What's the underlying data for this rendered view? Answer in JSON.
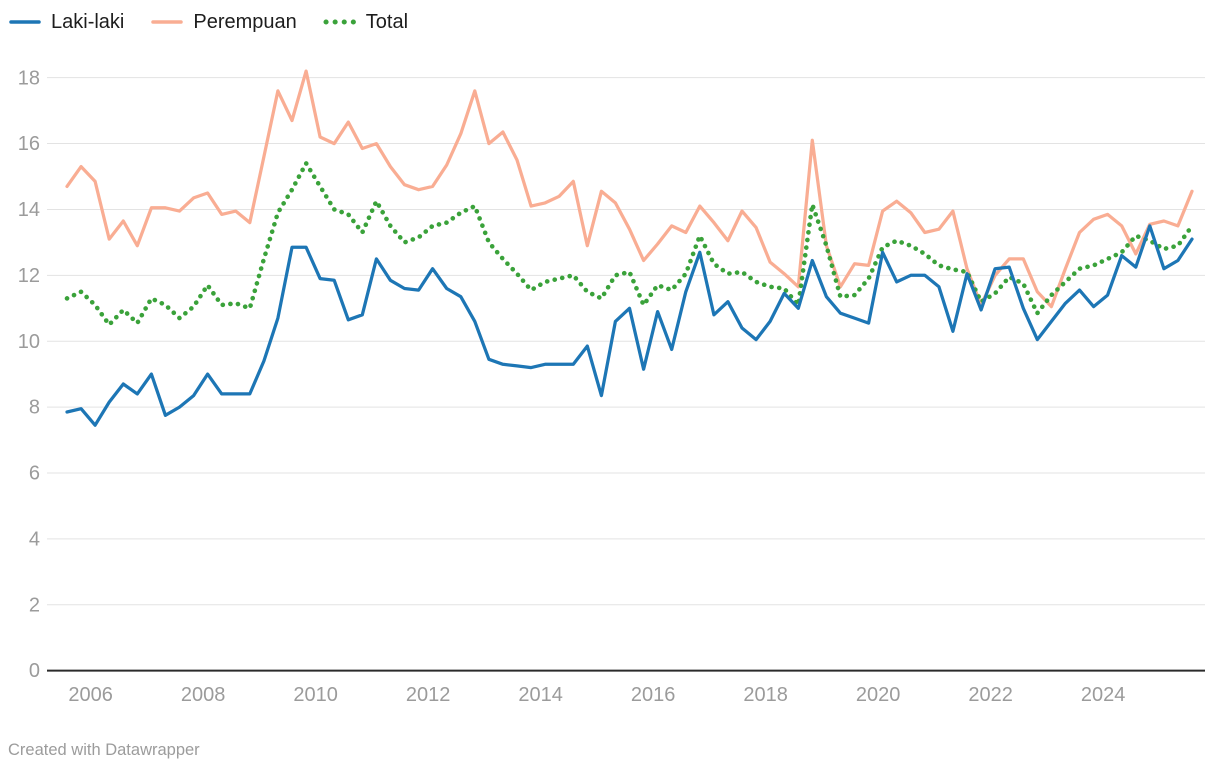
{
  "legend": {
    "items": [
      {
        "label": "Laki-laki",
        "color": "#1d76b5",
        "dash": "solid"
      },
      {
        "label": "Perempuan",
        "color": "#f9ad93",
        "dash": "solid"
      },
      {
        "label": "Total",
        "color": "#3aa23a",
        "dash": "dotted"
      }
    ]
  },
  "footer": {
    "credit": "Created with Datawrapper"
  },
  "colors": {
    "background": "#ffffff",
    "gridline": "#e3e3e3",
    "axis_baseline": "#2b2b2b",
    "tick_text": "#9b9b9b",
    "legend_text": "#1d1d1d"
  },
  "chart_data": {
    "type": "line",
    "title": "",
    "xlabel": "",
    "ylabel": "",
    "x_ticks": [
      2006,
      2008,
      2010,
      2012,
      2014,
      2016,
      2018,
      2020,
      2022,
      2024
    ],
    "y_ticks": [
      0,
      2,
      4,
      6,
      8,
      10,
      12,
      14,
      16,
      18
    ],
    "ylim": [
      0,
      18
    ],
    "grid": "horizontal",
    "legend_position": "top-left",
    "x_start": 2005.58,
    "x_step": 0.25,
    "points_per_series": 81,
    "series": [
      {
        "name": "Laki-laki",
        "color": "#1d76b5",
        "dash": "solid",
        "values": [
          7.85,
          7.95,
          7.45,
          8.15,
          8.7,
          8.4,
          9.0,
          7.75,
          8.0,
          8.35,
          9.0,
          8.4,
          8.4,
          8.4,
          9.4,
          10.7,
          12.85,
          12.85,
          11.9,
          11.85,
          10.65,
          10.8,
          12.5,
          11.85,
          11.6,
          11.55,
          12.2,
          11.6,
          11.35,
          10.6,
          9.45,
          9.3,
          9.25,
          9.2,
          9.3,
          9.3,
          9.3,
          9.85,
          8.35,
          10.6,
          11.0,
          9.15,
          10.9,
          9.75,
          11.5,
          12.7,
          10.8,
          11.2,
          10.4,
          10.05,
          10.6,
          11.45,
          11.0,
          12.45,
          11.35,
          10.85,
          10.7,
          10.55,
          12.7,
          11.8,
          12.0,
          12.0,
          11.65,
          10.3,
          12.05,
          10.95,
          12.2,
          12.25,
          11.0,
          10.05,
          10.6,
          11.15,
          11.55,
          11.05,
          11.4,
          12.6,
          12.25,
          13.5,
          12.2,
          12.45,
          13.1
        ]
      },
      {
        "name": "Perempuan",
        "color": "#f9ad93",
        "dash": "solid",
        "values": [
          14.7,
          15.3,
          14.85,
          13.1,
          13.65,
          12.9,
          14.05,
          14.05,
          13.95,
          14.35,
          14.5,
          13.85,
          13.95,
          13.6,
          15.6,
          17.6,
          16.7,
          18.2,
          16.2,
          16.0,
          16.65,
          15.85,
          16.0,
          15.3,
          14.75,
          14.6,
          14.7,
          15.35,
          16.3,
          17.6,
          16.0,
          16.35,
          15.5,
          14.1,
          14.2,
          14.4,
          14.85,
          12.9,
          14.55,
          14.2,
          13.4,
          12.45,
          12.95,
          13.5,
          13.3,
          14.1,
          13.6,
          13.05,
          13.95,
          13.45,
          12.4,
          12.05,
          11.65,
          16.1,
          12.9,
          11.65,
          12.35,
          12.3,
          13.95,
          14.25,
          13.9,
          13.3,
          13.4,
          13.95,
          12.2,
          11.1,
          12.0,
          12.5,
          12.5,
          11.5,
          11.05,
          12.2,
          13.3,
          13.7,
          13.85,
          13.5,
          12.65,
          13.55,
          13.65,
          13.5,
          14.55
        ]
      },
      {
        "name": "Total",
        "color": "#3aa23a",
        "dash": "dotted",
        "values": [
          11.3,
          11.5,
          11.1,
          10.5,
          10.95,
          10.55,
          11.3,
          11.1,
          10.7,
          11.05,
          11.7,
          11.1,
          11.15,
          11.0,
          12.5,
          13.9,
          14.6,
          15.4,
          14.7,
          14.0,
          13.85,
          13.3,
          14.25,
          13.5,
          13.0,
          13.15,
          13.5,
          13.6,
          13.9,
          14.1,
          13.0,
          12.5,
          12.05,
          11.55,
          11.8,
          11.9,
          12.0,
          11.5,
          11.3,
          12.0,
          12.1,
          11.1,
          11.7,
          11.55,
          12.05,
          13.2,
          12.35,
          12.05,
          12.1,
          11.8,
          11.65,
          11.6,
          11.1,
          14.15,
          12.9,
          11.35,
          11.4,
          11.9,
          12.85,
          13.05,
          12.9,
          12.65,
          12.3,
          12.18,
          12.1,
          11.2,
          11.45,
          11.95,
          11.75,
          10.85,
          11.4,
          11.8,
          12.2,
          12.3,
          12.5,
          12.7,
          13.2,
          13.05,
          12.8,
          12.9,
          13.5
        ]
      }
    ]
  }
}
